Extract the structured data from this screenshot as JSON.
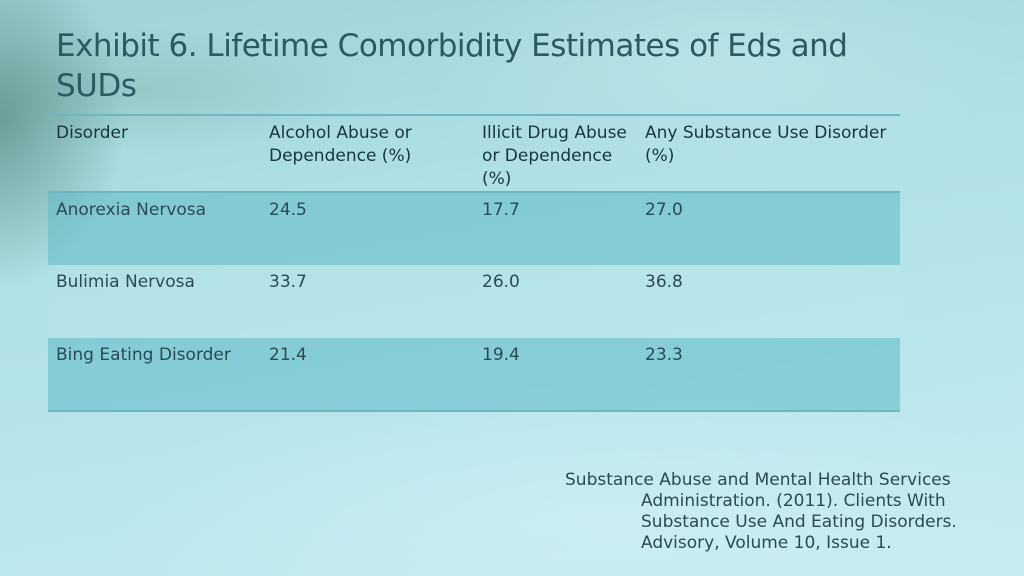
{
  "slide": {
    "title": "Exhibit 6. Lifetime Comorbidity Estimates of Eds and SUDs"
  },
  "table": {
    "headers": [
      "Disorder",
      "Alcohol Abuse or Dependence (%)",
      "Illicit Drug Abuse or Dependence (%)",
      "Any Substance Use Disorder (%)"
    ],
    "rows": [
      [
        "Anorexia Nervosa",
        "24.5",
        "17.7",
        "27.0"
      ],
      [
        "Bulimia Nervosa",
        "33.7",
        "26.0",
        "36.8"
      ],
      [
        "Bing Eating Disorder",
        "21.4",
        "19.4",
        "23.3"
      ]
    ]
  },
  "citation": {
    "lines": [
      "Substance Abuse and Mental Health Services",
      "Administration.  (2011).  Clients With",
      "Substance Use And Eating Disorders.",
      "Advisory, Volume 10, Issue 1."
    ]
  },
  "colors": {
    "title_text": "#2a5a62",
    "table_shade": "#5fb9c6",
    "table_rule": "#6cb8c2"
  }
}
